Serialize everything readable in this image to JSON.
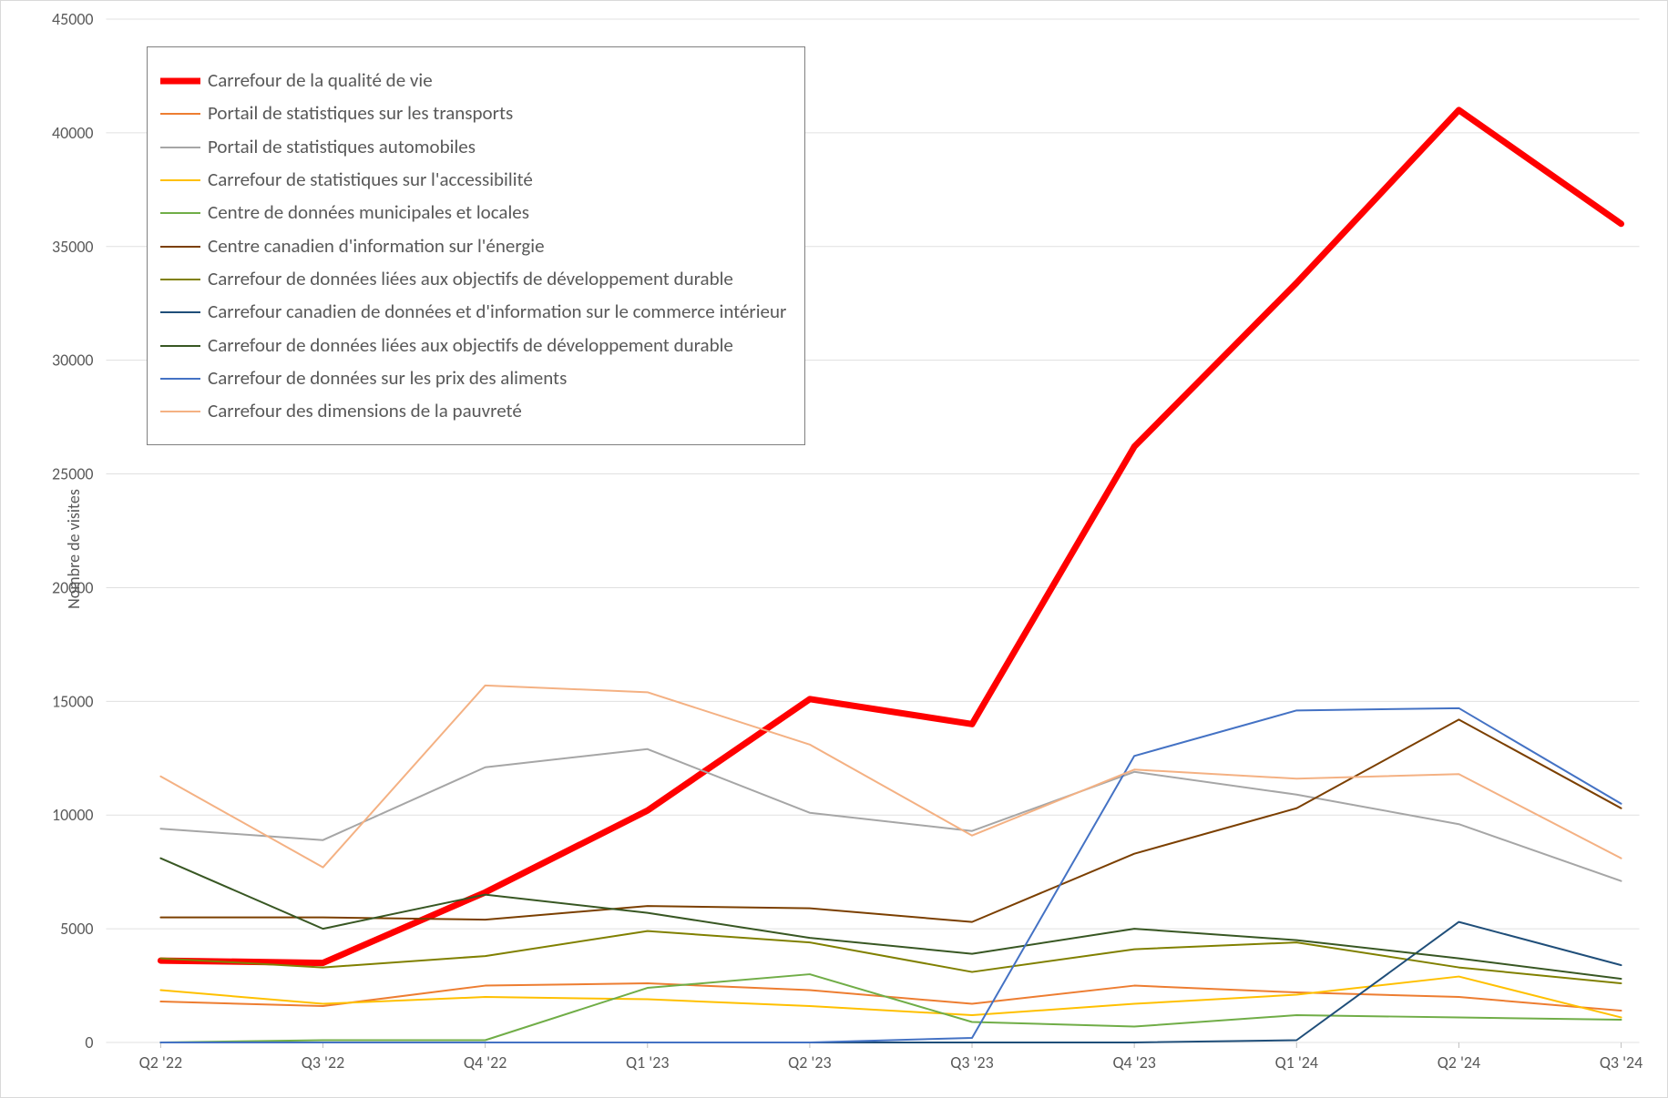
{
  "chart": {
    "type": "line",
    "background_color": "#ffffff",
    "border_color": "#d9d9d9",
    "grid_color": "#e0e0e0",
    "axis_tick_color": "#bfbfbf",
    "tick_label_color": "#595959",
    "tick_label_fontsize": 18,
    "legend_label_fontsize": 21,
    "y_axis": {
      "title": "Nombre de visites",
      "min": 0,
      "max": 45000,
      "tick_step": 5000,
      "ticks": [
        0,
        5000,
        10000,
        15000,
        20000,
        25000,
        30000,
        35000,
        40000,
        45000
      ]
    },
    "x_axis": {
      "categories": [
        "Q2 '22",
        "Q3 '22",
        "Q4 '22",
        "Q1 '23",
        "Q2 '23",
        "Q3 '23",
        "Q4 '23",
        "Q1 '24",
        "Q2 '24",
        "Q3 '24"
      ]
    },
    "legend": {
      "position": "top-left-inside",
      "border_color": "#808080"
    },
    "series": [
      {
        "name": "Carrefour de la qualité de vie",
        "color": "#ff0000",
        "stroke_width": 7,
        "values": [
          3600,
          3500,
          6600,
          10200,
          15100,
          14000,
          26200,
          33400,
          41000,
          36000
        ]
      },
      {
        "name": "Portail de statistiques sur les transports",
        "color": "#ed7d31",
        "stroke_width": 2,
        "values": [
          1800,
          1600,
          2500,
          2600,
          2300,
          1700,
          2500,
          2200,
          2000,
          1400
        ]
      },
      {
        "name": "Portail de statistiques automobiles",
        "color": "#a6a6a6",
        "stroke_width": 2,
        "values": [
          9400,
          8900,
          12100,
          12900,
          10100,
          9300,
          11900,
          10900,
          9600,
          7100
        ]
      },
      {
        "name": "Carrefour de statistiques sur l'accessibilité",
        "color": "#ffc000",
        "stroke_width": 2,
        "values": [
          2300,
          1700,
          2000,
          1900,
          1600,
          1200,
          1700,
          2100,
          2900,
          1100
        ]
      },
      {
        "name": "Centre de données municipales et locales",
        "color": "#70ad47",
        "stroke_width": 2,
        "values": [
          0,
          100,
          100,
          2400,
          3000,
          900,
          700,
          1200,
          1100,
          1000
        ]
      },
      {
        "name": "Centre canadien d'information sur l'énergie",
        "color": "#7b3f00",
        "stroke_width": 2,
        "values": [
          5500,
          5500,
          5400,
          6000,
          5900,
          5300,
          8300,
          10300,
          14200,
          10300
        ]
      },
      {
        "name": "Carrefour de données liées aux objectifs de développement durable",
        "color": "#808000",
        "stroke_width": 2,
        "values": [
          3700,
          3300,
          3800,
          4900,
          4400,
          3100,
          4100,
          4400,
          3300,
          2600
        ]
      },
      {
        "name": "Carrefour canadien de données et d'information sur le commerce intérieur",
        "color": "#1f4e79",
        "stroke_width": 2,
        "values": [
          0,
          0,
          0,
          0,
          0,
          0,
          0,
          100,
          5300,
          3400
        ]
      },
      {
        "name": "Carrefour de données liées aux objectifs de développement durable",
        "color": "#385723",
        "stroke_width": 2,
        "values": [
          8100,
          5000,
          6500,
          5700,
          4600,
          3900,
          5000,
          4500,
          3700,
          2800
        ]
      },
      {
        "name": "Carrefour de données sur les prix des aliments",
        "color": "#4472c4",
        "stroke_width": 2,
        "values": [
          0,
          0,
          0,
          0,
          0,
          200,
          12600,
          14600,
          14700,
          10500
        ]
      },
      {
        "name": "Carrefour des dimensions de la pauvreté",
        "color": "#f4b183",
        "stroke_width": 2,
        "values": [
          11700,
          7700,
          15700,
          15400,
          13100,
          9100,
          12000,
          11600,
          11800,
          8100
        ]
      }
    ]
  }
}
